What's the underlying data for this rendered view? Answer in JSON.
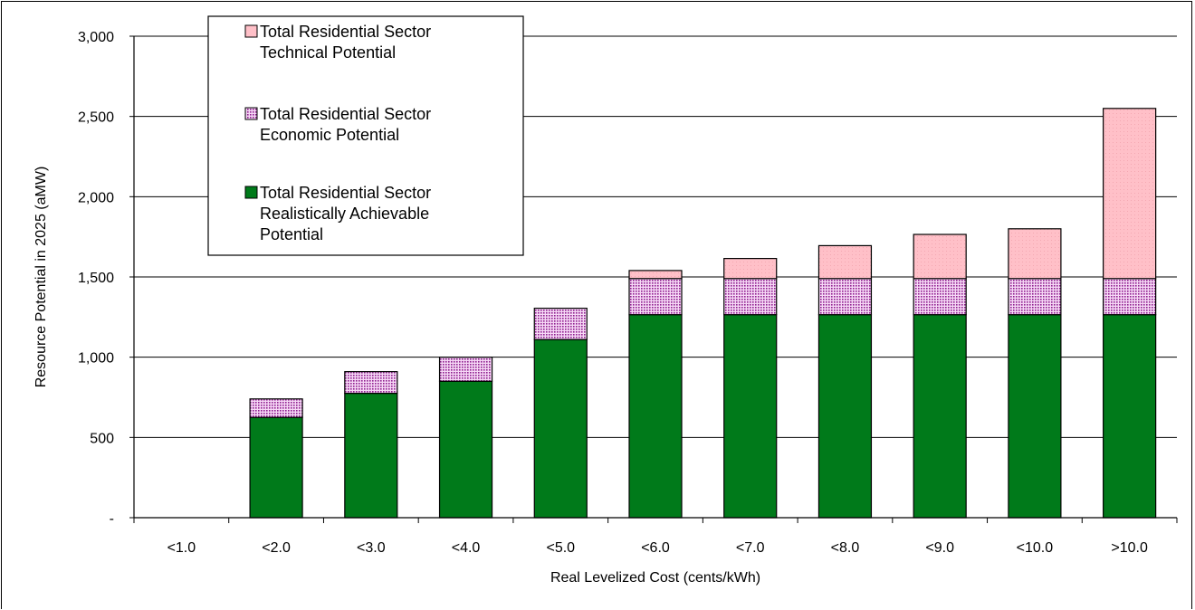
{
  "chart_data": {
    "type": "bar",
    "stacked": true,
    "categories": [
      "<1.0",
      "<2.0",
      "<3.0",
      "<4.0",
      "<5.0",
      "<6.0",
      "<7.0",
      "<8.0",
      "<9.0",
      "<10.0",
      ">10.0"
    ],
    "series": [
      {
        "name": "Total  Residential Sector Realistically Achievable Potential",
        "color": "#007A1A",
        "pattern": "solid",
        "values": [
          0,
          625,
          775,
          850,
          1110,
          1265,
          1265,
          1265,
          1265,
          1265,
          1265
        ]
      },
      {
        "name": "Total  Residential Sector Economic Potential",
        "color": "#8E1F8E",
        "pattern": "dotted",
        "values": [
          0,
          115,
          135,
          150,
          195,
          225,
          225,
          225,
          225,
          225,
          225
        ]
      },
      {
        "name": "Total  Residential Sector Technical Potential",
        "color": "#FFC0C8",
        "pattern": "solid",
        "values": [
          0,
          0,
          0,
          0,
          0,
          50,
          125,
          205,
          275,
          310,
          1060
        ]
      }
    ],
    "legend_lines": [
      [
        "Total  Residential Sector",
        "Technical Potential"
      ],
      [
        "Total  Residential Sector",
        "Economic Potential"
      ],
      [
        "Total  Residential Sector",
        "Realistically Achievable",
        "Potential"
      ]
    ],
    "xlabel": "Real Levelized Cost (cents/kWh)",
    "ylabel": "Resource Potential in 2025 (aMW)",
    "ylim": [
      0,
      3000
    ],
    "yticks": [
      0,
      500,
      1000,
      1500,
      2000,
      2500,
      3000
    ],
    "ytick_labels": [
      "-",
      "500",
      "1,000",
      "1,500",
      "2,000",
      "2,500",
      "3,000"
    ],
    "grid": true,
    "legend_position": "top-left"
  }
}
